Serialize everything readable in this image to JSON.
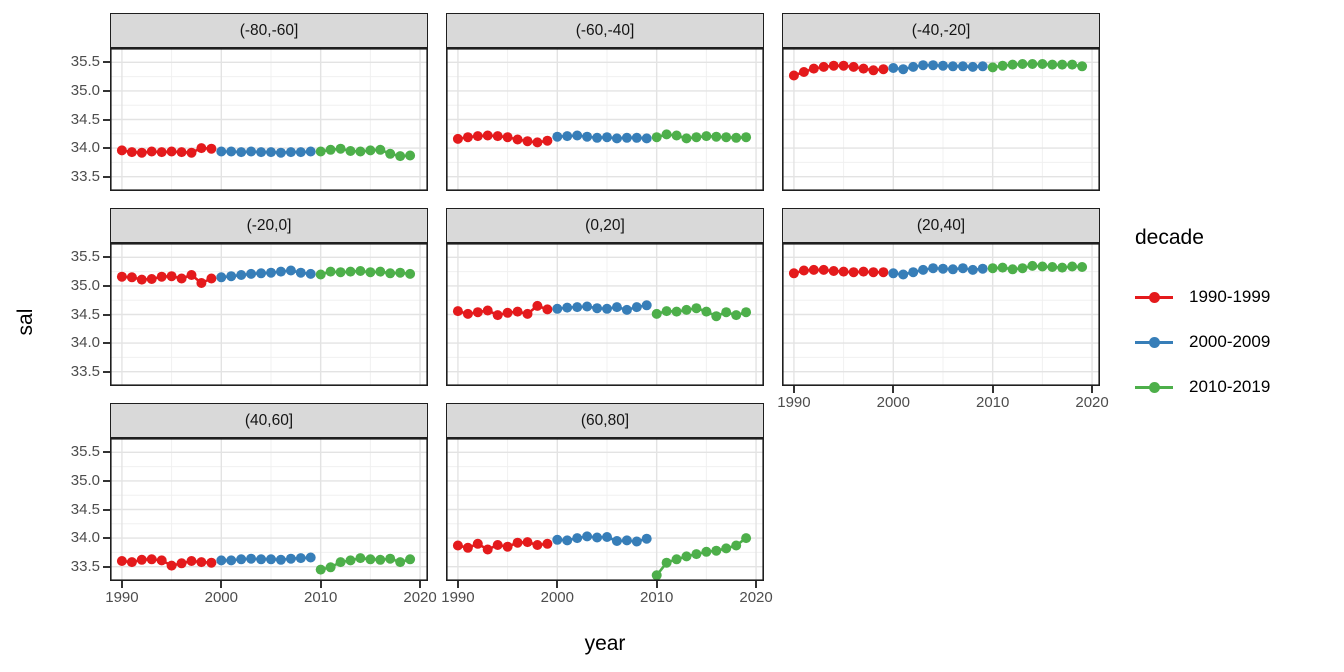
{
  "legend": {
    "title": "decade",
    "items": [
      {
        "label": "1990-1999",
        "color": "#E41A1C"
      },
      {
        "label": "2000-2009",
        "color": "#377EB8"
      },
      {
        "label": "2010-2019",
        "color": "#4DAF4A"
      }
    ]
  },
  "chart_data": {
    "type": "scatter",
    "xlabel": "year",
    "ylabel": "sal",
    "legend_title": "decade",
    "xlim": [
      1988.8,
      2020.8
    ],
    "ylim": [
      33.25,
      35.75
    ],
    "x_ticks": [
      1990,
      2000,
      2010,
      2020
    ],
    "y_ticks": [
      33.5,
      34.0,
      34.5,
      35.0,
      35.5
    ],
    "x_minor_ticks": [
      1995,
      2005,
      2015
    ],
    "y_minor_ticks": [
      33.75,
      34.25,
      34.75,
      35.25
    ],
    "grid": true,
    "legend_position": "right",
    "decades": [
      {
        "name": "1990-1999",
        "color": "#E41A1C",
        "start_year": 1990
      },
      {
        "name": "2000-2009",
        "color": "#377EB8",
        "start_year": 2000
      },
      {
        "name": "2010-2019",
        "color": "#4DAF4A",
        "start_year": 2010
      }
    ],
    "facets": [
      {
        "label": "(-80,-60]",
        "values": [
          [
            33.96,
            33.93,
            33.92,
            33.94,
            33.93,
            33.94,
            33.93,
            33.92,
            34.0,
            33.99
          ],
          [
            33.94,
            33.94,
            33.93,
            33.94,
            33.93,
            33.93,
            33.92,
            33.93,
            33.93,
            33.94
          ],
          [
            33.94,
            33.97,
            33.99,
            33.95,
            33.94,
            33.96,
            33.97,
            33.9,
            33.86,
            33.87
          ]
        ]
      },
      {
        "label": "(-60,-40]",
        "values": [
          [
            34.16,
            34.19,
            34.21,
            34.22,
            34.21,
            34.19,
            34.15,
            34.12,
            34.1,
            34.13
          ],
          [
            34.2,
            34.21,
            34.22,
            34.2,
            34.18,
            34.19,
            34.17,
            34.18,
            34.18,
            34.17
          ],
          [
            34.19,
            34.24,
            34.22,
            34.17,
            34.19,
            34.21,
            34.2,
            34.19,
            34.18,
            34.19
          ]
        ]
      },
      {
        "label": "(-40,-20]",
        "values": [
          [
            35.27,
            35.33,
            35.39,
            35.42,
            35.44,
            35.44,
            35.42,
            35.39,
            35.36,
            35.38
          ],
          [
            35.4,
            35.38,
            35.42,
            35.45,
            35.45,
            35.44,
            35.43,
            35.43,
            35.42,
            35.43
          ],
          [
            35.41,
            35.44,
            35.46,
            35.47,
            35.47,
            35.47,
            35.46,
            35.46,
            35.46,
            35.43
          ]
        ]
      },
      {
        "label": "(-20,0]",
        "values": [
          [
            35.16,
            35.15,
            35.11,
            35.12,
            35.16,
            35.17,
            35.13,
            35.19,
            35.05,
            35.13
          ],
          [
            35.15,
            35.17,
            35.19,
            35.21,
            35.22,
            35.23,
            35.25,
            35.27,
            35.23,
            35.21
          ],
          [
            35.2,
            35.25,
            35.24,
            35.25,
            35.26,
            35.24,
            35.25,
            35.22,
            35.23,
            35.21
          ]
        ]
      },
      {
        "label": "(0,20]",
        "values": [
          [
            34.56,
            34.51,
            34.54,
            34.57,
            34.49,
            34.53,
            34.55,
            34.51,
            34.65,
            34.59
          ],
          [
            34.6,
            34.62,
            34.63,
            34.64,
            34.61,
            34.6,
            34.63,
            34.58,
            34.63,
            34.66
          ],
          [
            34.51,
            34.56,
            34.55,
            34.58,
            34.61,
            34.55,
            34.47,
            34.54,
            34.49,
            34.54
          ]
        ]
      },
      {
        "label": "(20,40]",
        "values": [
          [
            35.22,
            35.27,
            35.28,
            35.28,
            35.26,
            35.25,
            35.24,
            35.25,
            35.24,
            35.24
          ],
          [
            35.22,
            35.2,
            35.24,
            35.28,
            35.31,
            35.3,
            35.29,
            35.31,
            35.28,
            35.3
          ],
          [
            35.31,
            35.32,
            35.29,
            35.31,
            35.35,
            35.34,
            35.33,
            35.32,
            35.34,
            35.33
          ]
        ]
      },
      {
        "label": "(40,60]",
        "values": [
          [
            33.6,
            33.58,
            33.62,
            33.63,
            33.61,
            33.52,
            33.56,
            33.6,
            33.58,
            33.57
          ],
          [
            33.61,
            33.61,
            33.63,
            33.64,
            33.63,
            33.63,
            33.62,
            33.64,
            33.65,
            33.66
          ],
          [
            33.45,
            33.49,
            33.58,
            33.61,
            33.65,
            33.63,
            33.62,
            33.64,
            33.58,
            33.63
          ]
        ]
      },
      {
        "label": "(60,80]",
        "values": [
          [
            33.87,
            33.83,
            33.9,
            33.8,
            33.88,
            33.85,
            33.92,
            33.93,
            33.88,
            33.9
          ],
          [
            33.97,
            33.96,
            34.0,
            34.03,
            34.01,
            34.02,
            33.95,
            33.96,
            33.94,
            33.99
          ],
          [
            33.35,
            33.57,
            33.63,
            33.68,
            33.72,
            33.76,
            33.78,
            33.82,
            33.87,
            34.0
          ]
        ]
      }
    ]
  }
}
